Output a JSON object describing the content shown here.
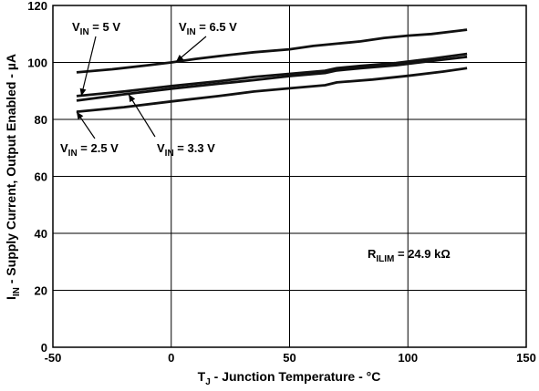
{
  "chart_data": {
    "type": "line",
    "xlabel_main": "T",
    "xlabel_sub": "J",
    "xlabel_rest": " - Junction Temperature - °C",
    "ylabel_main": "I",
    "ylabel_sub": "IN",
    "ylabel_rest": " - Supply Current, Output Enabled - µA",
    "xlim": [
      -50,
      150
    ],
    "ylim": [
      0,
      120
    ],
    "x_ticks": [
      "-50",
      "0",
      "50",
      "100",
      "150"
    ],
    "y_ticks": [
      "0",
      "20",
      "40",
      "60",
      "80",
      "100",
      "120"
    ],
    "grid": true,
    "series": [
      {
        "name_main": "V",
        "name_sub": "IN",
        "name_rest": " = 6.5 V",
        "x": [
          -40,
          -25,
          -10,
          0,
          10,
          20,
          35,
          50,
          60,
          70,
          80,
          90,
          100,
          110,
          125
        ],
        "y": [
          96.5,
          97.6,
          99.0,
          100.0,
          101.2,
          102.2,
          103.6,
          104.6,
          105.8,
          106.6,
          107.4,
          108.6,
          109.4,
          110.0,
          111.5
        ]
      },
      {
        "name_main": "V",
        "name_sub": "IN",
        "name_rest": " = 5 V",
        "x": [
          -40,
          -20,
          0,
          20,
          35,
          50,
          65,
          70,
          80,
          95,
          110,
          125
        ],
        "y": [
          88.2,
          89.8,
          91.7,
          93.4,
          94.9,
          96.0,
          97.1,
          98.0,
          98.8,
          99.8,
          101.3,
          103.0
        ]
      },
      {
        "name_main": "V",
        "name_sub": "IN",
        "name_rest": " = 3.3 V",
        "x": [
          -40,
          -20,
          0,
          20,
          35,
          50,
          65,
          70,
          80,
          95,
          110,
          125
        ],
        "y": [
          86.6,
          88.8,
          90.8,
          92.5,
          93.8,
          95.2,
          96.3,
          97.2,
          98.0,
          99.0,
          100.5,
          102.0
        ]
      },
      {
        "name_main": "V",
        "name_sub": "IN",
        "name_rest": " = 2.5 V",
        "x": [
          -40,
          -20,
          0,
          20,
          35,
          50,
          65,
          70,
          85,
          100,
          115,
          125
        ],
        "y": [
          82.7,
          84.3,
          86.3,
          88.2,
          89.8,
          90.9,
          92.0,
          93.0,
          94.0,
          95.3,
          96.8,
          98.0
        ]
      }
    ],
    "annotation": {
      "main": "R",
      "sub": "ILIM",
      "rest": " = 24.9 kΩ"
    }
  }
}
